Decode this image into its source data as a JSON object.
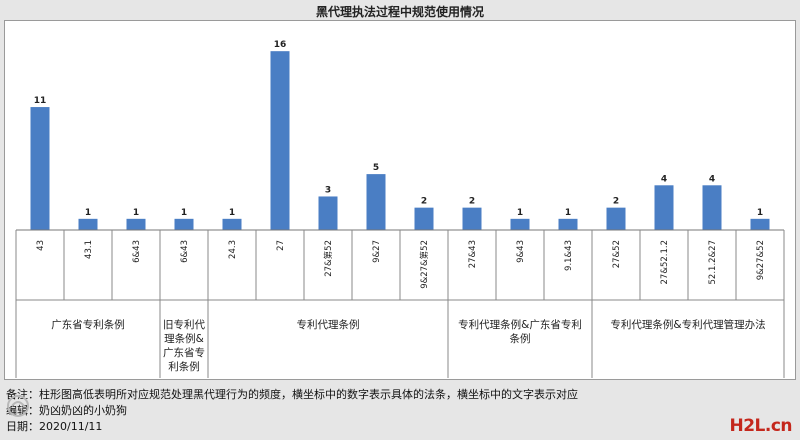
{
  "chart_data": {
    "type": "bar",
    "title": "黑代理执法过程中规范使用情况",
    "categories": [
      "43",
      "43.1",
      "6&43",
      "6&43",
      "24.3",
      "27",
      "27&第52",
      "9&27",
      "9&27&第52",
      "27&43",
      "9&43",
      "9.1&43",
      "27&52",
      "27&52.1.2",
      "52.1.2&27",
      "9&27&52"
    ],
    "values": [
      11,
      1,
      1,
      1,
      1,
      16,
      3,
      5,
      2,
      2,
      1,
      1,
      2,
      4,
      4,
      1
    ],
    "ylim": [
      0,
      17
    ],
    "grid": false,
    "bar_color": "#4a7ec4",
    "groups": [
      {
        "label": "广东省专利条例",
        "count": 3
      },
      {
        "label": "旧专利代理条例&广东省专利条例",
        "count": 1
      },
      {
        "label": "专利代理条例",
        "count": 5
      },
      {
        "label": "专利代理条例&广东省专利条例",
        "count": 3
      },
      {
        "label": "专利代理条例&专利代理管理办法",
        "count": 4
      }
    ]
  },
  "notes": {
    "remark": "备注：柱形图高低表明所对应规范处理黑代理行为的频度，横坐标中的数字表示具体的法条，横坐标中的文字表示对应",
    "editor": "编辑：奶凶奶凶的小奶狗",
    "date": "日期：2020/11/11"
  },
  "watermark": {
    "text": "H2L.cn"
  }
}
